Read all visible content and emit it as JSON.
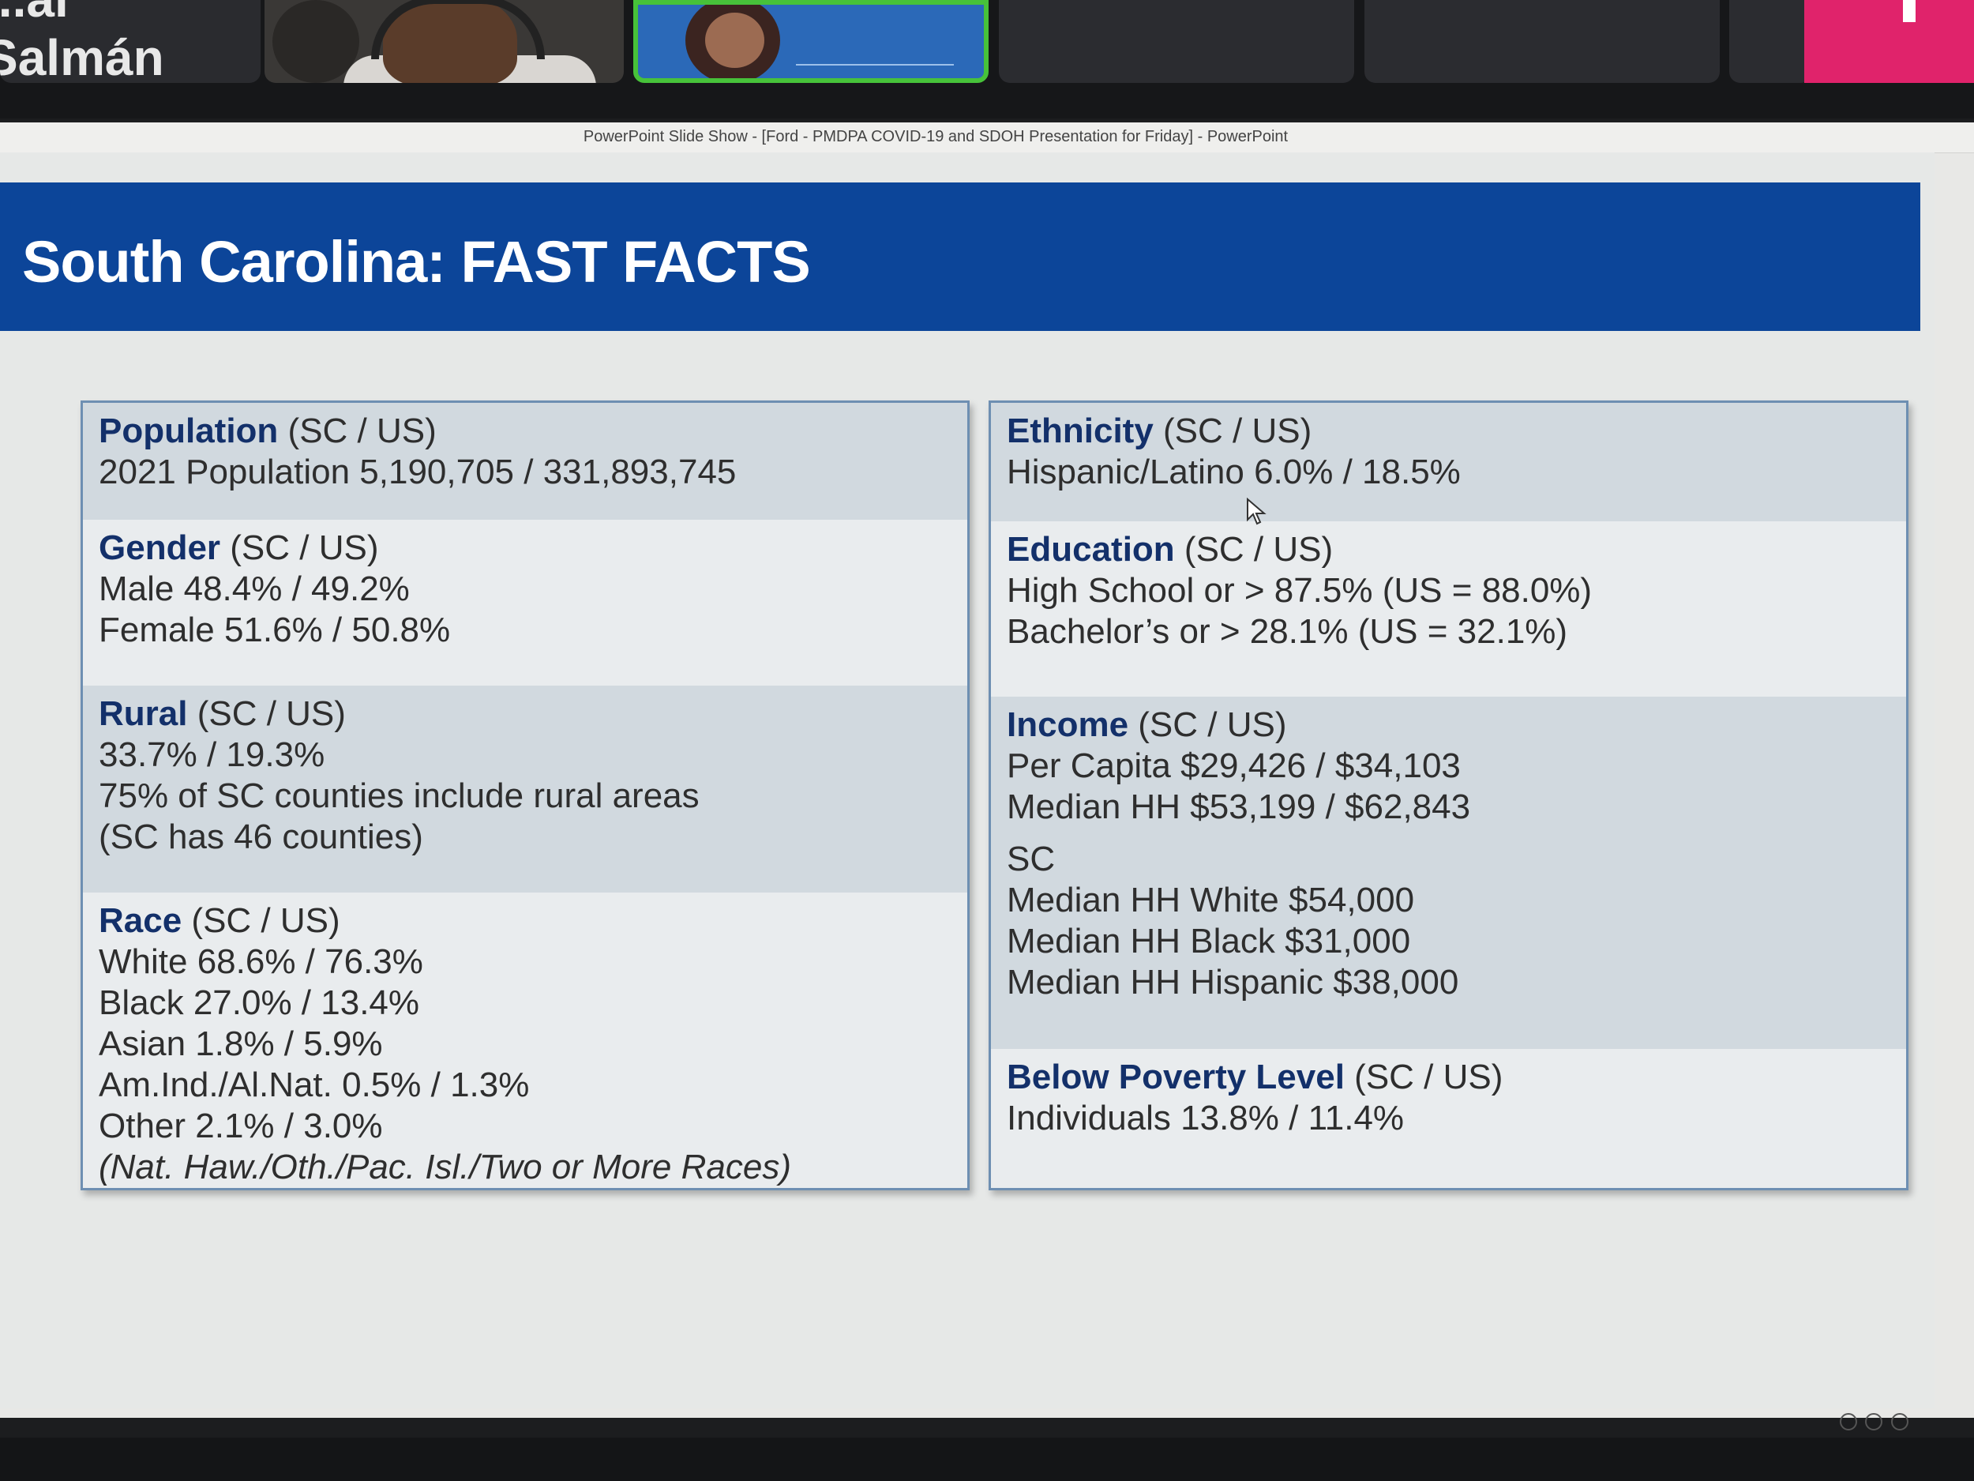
{
  "meeting": {
    "partial_name": "...al Salmán"
  },
  "window": {
    "title": "PowerPoint Slide Show - [Ford - PMDPA COVID-19 and SDOH Presentation for Friday] - PowerPoint"
  },
  "slide": {
    "title": "South Carolina: FAST FACTS",
    "left_panel": {
      "population": {
        "term": "Population",
        "qualifier": " (SC / US)",
        "lines": [
          "2021 Population 5,190,705 / 331,893,745"
        ]
      },
      "gender": {
        "term": "Gender",
        "qualifier": " (SC / US)",
        "lines": [
          "Male 48.4% / 49.2%",
          "Female 51.6% / 50.8%"
        ]
      },
      "rural": {
        "term": "Rural",
        "qualifier": " (SC / US)",
        "lines": [
          "33.7% / 19.3%",
          "75% of SC counties include rural areas",
          "(SC has 46 counties)"
        ]
      },
      "race": {
        "term": "Race",
        "qualifier": " (SC / US)",
        "lines": [
          "White 68.6% / 76.3%",
          "Black 27.0% / 13.4%",
          "Asian 1.8% / 5.9%",
          "Am.Ind./Al.Nat. 0.5% / 1.3%",
          "Other 2.1% / 3.0%"
        ],
        "note": "(Nat. Haw./Oth./Pac. Isl./Two or More Races)"
      }
    },
    "right_panel": {
      "ethnicity": {
        "term": "Ethnicity",
        "qualifier": " (SC / US)",
        "lines": [
          "Hispanic/Latino 6.0% / 18.5%"
        ]
      },
      "education": {
        "term": "Education",
        "qualifier": " (SC / US)",
        "lines": [
          "High School or > 87.5% (US = 88.0%)",
          "Bachelor’s or > 28.1% (US = 32.1%)"
        ]
      },
      "income": {
        "term": "Income",
        "qualifier": " (SC / US)",
        "lines": [
          "Per Capita $29,426 / $34,103",
          "Median HH $53,199 / $62,843"
        ],
        "sub_label": "SC",
        "sub_lines": [
          "Median HH White $54,000",
          "Median HH Black $31,000",
          "Median HH Hispanic $38,000"
        ]
      },
      "poverty": {
        "term": "Below Poverty Level",
        "qualifier": " (SC / US)",
        "lines": [
          "Individuals 13.8% / 11.4%"
        ]
      }
    }
  },
  "colors": {
    "header_band": "#0c4599",
    "term_text": "#13306a",
    "shaded_row": "#d1d9df",
    "light_row": "#e9ecee",
    "active_speaker_border": "#47c23a"
  },
  "icons": {
    "cursor": "mouse-pointer-icon"
  }
}
